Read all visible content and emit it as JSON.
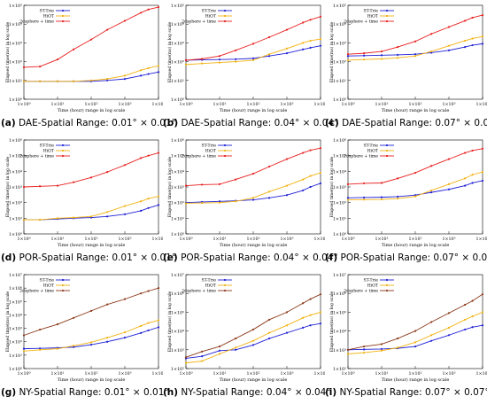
{
  "common": {
    "xlabel": "Time (hour) range in log scale",
    "ylabel": "Elapsed time(ms) in log scale",
    "xticks": [
      "1×10⁰",
      "1×10¹",
      "1×10²",
      "1×10³",
      "1×10⁴"
    ]
  },
  "colors": {
    "st_trie": "#1f1fd6",
    "hiot": "#f2b211",
    "twodsphere": "#e81f1f",
    "twodsphere_ny": "#8b3a1a"
  },
  "chart_data": [
    {
      "id": "a",
      "type": "line",
      "caption_tag": "(a)",
      "caption_text": "DAE-Spatial Range: 0.01° × 0.01°",
      "xlabel": "Time (hour) range in log scale",
      "ylabel": "Elapsed time(ms) in log scale",
      "xscale": "log",
      "yscale": "log",
      "xlim": [
        1,
        10000
      ],
      "ylim_exp": [
        0,
        5
      ],
      "yticks": [
        "1×10⁰",
        "1×10¹",
        "1×10²",
        "1×10³",
        "1×10⁴",
        "1×10⁵"
      ],
      "legend": "top-left",
      "x": [
        1,
        3,
        10,
        30,
        100,
        300,
        1000,
        3000,
        5000,
        10000
      ],
      "series": [
        {
          "name": "ST-Trie",
          "color": "#1f1fd6",
          "values": [
            9,
            9,
            9,
            9,
            9,
            10,
            12,
            18,
            22,
            28
          ]
        },
        {
          "name": "HiOT",
          "color": "#f2b211",
          "values": [
            9,
            9,
            9,
            9,
            10,
            12,
            18,
            35,
            45,
            60
          ]
        },
        {
          "name": "2dsphere + time",
          "color": "#e81f1f",
          "values": [
            50,
            55,
            130,
            450,
            1500,
            5000,
            15000,
            40000,
            60000,
            80000
          ]
        }
      ]
    },
    {
      "id": "b",
      "type": "line",
      "caption_tag": "(b)",
      "caption_text": "DAE-Spatial Range: 0.04° × 0.04°",
      "xlabel": "Time (hour) range in log scale",
      "ylabel": "Elapsed time(ms) in log scale",
      "xscale": "log",
      "yscale": "log",
      "xlim": [
        1,
        10000
      ],
      "ylim_exp": [
        0,
        5
      ],
      "yticks": [
        "1×10⁰",
        "1×10¹",
        "1×10²",
        "1×10³",
        "1×10⁴",
        "1×10⁵"
      ],
      "legend": "top-left",
      "x": [
        1,
        3,
        10,
        30,
        100,
        300,
        1000,
        3000,
        5000,
        10000
      ],
      "series": [
        {
          "name": "ST-Trie",
          "color": "#1f1fd6",
          "values": [
            120,
            125,
            130,
            135,
            150,
            200,
            280,
            450,
            550,
            700
          ]
        },
        {
          "name": "HiOT",
          "color": "#f2b211",
          "values": [
            70,
            80,
            90,
            100,
            120,
            250,
            500,
            1000,
            1300,
            1600
          ]
        },
        {
          "name": "2dsphere + time",
          "color": "#e81f1f",
          "values": [
            120,
            140,
            200,
            400,
            900,
            2000,
            5000,
            12000,
            17000,
            25000
          ]
        }
      ]
    },
    {
      "id": "c",
      "type": "line",
      "caption_tag": "(c)",
      "caption_text": "DAE-Spatial Range: 0.07° × 0.07°",
      "xlabel": "Time (hour) range in log scale",
      "ylabel": "Elapsed time(ms) in log scale",
      "xscale": "log",
      "yscale": "log",
      "xlim": [
        1,
        10000
      ],
      "ylim_exp": [
        0,
        5
      ],
      "yticks": [
        "1×10⁰",
        "1×10¹",
        "1×10²",
        "1×10³",
        "1×10⁴",
        "1×10⁵"
      ],
      "legend": "top-left",
      "x": [
        1,
        3,
        10,
        30,
        100,
        300,
        1000,
        3000,
        5000,
        10000
      ],
      "series": [
        {
          "name": "ST-Trie",
          "color": "#1f1fd6",
          "values": [
            200,
            210,
            220,
            230,
            250,
            300,
            400,
            600,
            750,
            900
          ]
        },
        {
          "name": "HiOT",
          "color": "#f2b211",
          "values": [
            120,
            130,
            140,
            160,
            200,
            350,
            700,
            1300,
            1700,
            2200
          ]
        },
        {
          "name": "2dsphere + time",
          "color": "#e81f1f",
          "values": [
            250,
            280,
            350,
            600,
            1200,
            3000,
            7000,
            15000,
            22000,
            30000
          ]
        }
      ]
    },
    {
      "id": "d",
      "type": "line",
      "caption_tag": "(d)",
      "caption_text": "POR-Spatial Range: 0.01° × 0.01°",
      "xlabel": "Time (hour) range in log scale",
      "ylabel": "Elapsed time(ms) in log scale",
      "xscale": "log",
      "yscale": "log",
      "xlim": [
        1,
        10000
      ],
      "ylim_exp": [
        0,
        6
      ],
      "yticks": [
        "1×10⁰",
        "1×10¹",
        "1×10²",
        "1×10³",
        "1×10⁴",
        "1×10⁵",
        "1×10⁶"
      ],
      "legend": "top-left",
      "x": [
        1,
        3,
        10,
        30,
        100,
        300,
        1000,
        3000,
        5000,
        10000
      ],
      "series": [
        {
          "name": "ST-Trie",
          "color": "#1f1fd6",
          "values": [
            8,
            8,
            9,
            10,
            11,
            13,
            18,
            30,
            45,
            70
          ]
        },
        {
          "name": "HiOT",
          "color": "#f2b211",
          "values": [
            8,
            8,
            10,
            11,
            13,
            25,
            60,
            120,
            180,
            250
          ]
        },
        {
          "name": "2dsphere + time",
          "color": "#e81f1f",
          "values": [
            1000,
            1100,
            1200,
            2000,
            4000,
            9000,
            25000,
            70000,
            100000,
            150000
          ]
        }
      ]
    },
    {
      "id": "e",
      "type": "line",
      "caption_tag": "(e)",
      "caption_text": "POR-Spatial Range: 0.04° × 0.04°",
      "xlabel": "Time (hour) range in log scale",
      "ylabel": "Elapsed time(ms) in log scale",
      "xscale": "log",
      "yscale": "log",
      "xlim": [
        1,
        10000
      ],
      "ylim_exp": [
        0,
        6
      ],
      "yticks": [
        "1×10⁰",
        "1×10¹",
        "1×10²",
        "1×10³",
        "1×10⁴",
        "1×10⁵",
        "1×10⁶"
      ],
      "legend": "top-left",
      "x": [
        1,
        3,
        10,
        30,
        100,
        300,
        1000,
        3000,
        5000,
        10000
      ],
      "series": [
        {
          "name": "ST-Trie",
          "color": "#1f1fd6",
          "values": [
            100,
            110,
            120,
            130,
            150,
            200,
            300,
            600,
            1000,
            1700
          ]
        },
        {
          "name": "HiOT",
          "color": "#f2b211",
          "values": [
            90,
            95,
            100,
            120,
            200,
            500,
            1200,
            3000,
            5000,
            8000
          ]
        },
        {
          "name": "2dsphere + time",
          "color": "#e81f1f",
          "values": [
            1200,
            1400,
            1500,
            3000,
            7000,
            20000,
            60000,
            150000,
            220000,
            300000
          ]
        }
      ]
    },
    {
      "id": "f",
      "type": "line",
      "caption_tag": "(f)",
      "caption_text": "POR-Spatial Range: 0.07° × 0.07°",
      "xlabel": "Time (hour) range in log scale",
      "ylabel": "Elapsed time(ms) in log scale",
      "xscale": "log",
      "yscale": "log",
      "xlim": [
        1,
        10000
      ],
      "ylim_exp": [
        0,
        6
      ],
      "yticks": [
        "1×10⁰",
        "1×10¹",
        "1×10²",
        "1×10³",
        "1×10⁴",
        "1×10⁵",
        "1×10⁶"
      ],
      "legend": "top-left",
      "x": [
        1,
        3,
        10,
        30,
        100,
        300,
        1000,
        3000,
        5000,
        10000
      ],
      "series": [
        {
          "name": "ST-Trie",
          "color": "#1f1fd6",
          "values": [
            200,
            210,
            220,
            240,
            300,
            450,
            700,
            1200,
            1800,
            2500
          ]
        },
        {
          "name": "HiOT",
          "color": "#f2b211",
          "values": [
            150,
            155,
            160,
            180,
            250,
            600,
            1500,
            3500,
            6000,
            9000
          ]
        },
        {
          "name": "2dsphere + time",
          "color": "#e81f1f",
          "values": [
            1500,
            1700,
            1800,
            3500,
            8000,
            22000,
            60000,
            150000,
            210000,
            280000
          ]
        }
      ]
    },
    {
      "id": "g",
      "type": "line",
      "caption_tag": "(g)",
      "caption_text": "NY-Spatial Range: 0.01° × 0.01°",
      "xlabel": "Time (hour) range in log scale",
      "ylabel": "Elapsed time(ms) in log scale",
      "xscale": "log",
      "yscale": "log",
      "xlim": [
        1,
        10000
      ],
      "ylim_exp": [
        0,
        7
      ],
      "yticks": [
        "1×10⁰",
        "1×10¹",
        "1×10²",
        "1×10³",
        "1×10⁴",
        "1×10⁵",
        "1×10⁶",
        "1×10⁷"
      ],
      "legend": "top-left",
      "x": [
        1,
        3,
        10,
        30,
        100,
        300,
        1000,
        3000,
        5000,
        10000
      ],
      "series": [
        {
          "name": "ST-Trie",
          "color": "#1f1fd6",
          "values": [
            30,
            32,
            35,
            40,
            60,
            100,
            200,
            450,
            700,
            1200
          ]
        },
        {
          "name": "HiOT",
          "color": "#f2b211",
          "values": [
            20,
            25,
            30,
            50,
            90,
            200,
            500,
            1500,
            2500,
            4000
          ]
        },
        {
          "name": "2dsphere + time",
          "color": "#8b3a1a",
          "values": [
            300,
            800,
            2000,
            6000,
            20000,
            60000,
            150000,
            400000,
            600000,
            1000000
          ]
        }
      ]
    },
    {
      "id": "h",
      "type": "line",
      "caption_tag": "(h)",
      "caption_text": "NY-Spatial Range: 0.04° × 0.04°",
      "xlabel": "Time (hour) range in log scale",
      "ylabel": "Elapsed time(ms) in log scale",
      "xscale": "log",
      "yscale": "log",
      "xlim": [
        1,
        10000
      ],
      "ylim_exp": [
        2,
        7
      ],
      "yticks": [
        "1×10²",
        "1×10³",
        "1×10⁴",
        "1×10⁵",
        "1×10⁶",
        "1×10⁷"
      ],
      "legend": "top-left",
      "x": [
        1,
        3,
        10,
        30,
        100,
        300,
        1000,
        3000,
        5000,
        10000
      ],
      "series": [
        {
          "name": "ST-Trie",
          "color": "#1f1fd6",
          "values": [
            350,
            450,
            900,
            1000,
            1800,
            4000,
            8000,
            15000,
            20000,
            25000
          ]
        },
        {
          "name": "HiOT",
          "color": "#f2b211",
          "values": [
            200,
            250,
            600,
            1300,
            3000,
            8000,
            20000,
            50000,
            70000,
            100000
          ]
        },
        {
          "name": "2dsphere + time",
          "color": "#8b3a1a",
          "values": [
            400,
            800,
            1500,
            4000,
            12000,
            40000,
            100000,
            300000,
            500000,
            900000
          ]
        }
      ]
    },
    {
      "id": "i",
      "type": "line",
      "caption_tag": "(i)",
      "caption_text": "NY-Spatial Range: 0.07° × 0.07°",
      "xlabel": "Time (hour) range in log scale",
      "ylabel": "Elapsed time(ms) in log scale",
      "xscale": "log",
      "yscale": "log",
      "xlim": [
        1,
        10000
      ],
      "ylim_exp": [
        2,
        7
      ],
      "yticks": [
        "1×10²",
        "1×10³",
        "1×10⁴",
        "1×10⁵",
        "1×10⁶",
        "1×10⁷"
      ],
      "legend": "top-left",
      "x": [
        1,
        3,
        10,
        30,
        100,
        300,
        1000,
        3000,
        5000,
        10000
      ],
      "series": [
        {
          "name": "ST-Trie",
          "color": "#1f1fd6",
          "values": [
            1000,
            1050,
            1100,
            1200,
            1500,
            3000,
            6000,
            12000,
            16000,
            20000
          ]
        },
        {
          "name": "HiOT",
          "color": "#f2b211",
          "values": [
            600,
            700,
            900,
            1300,
            2500,
            6000,
            15000,
            40000,
            60000,
            100000
          ]
        },
        {
          "name": "2dsphere + time",
          "color": "#8b3a1a",
          "values": [
            1000,
            1500,
            2000,
            4000,
            10000,
            30000,
            90000,
            250000,
            400000,
            900000
          ]
        }
      ]
    }
  ]
}
